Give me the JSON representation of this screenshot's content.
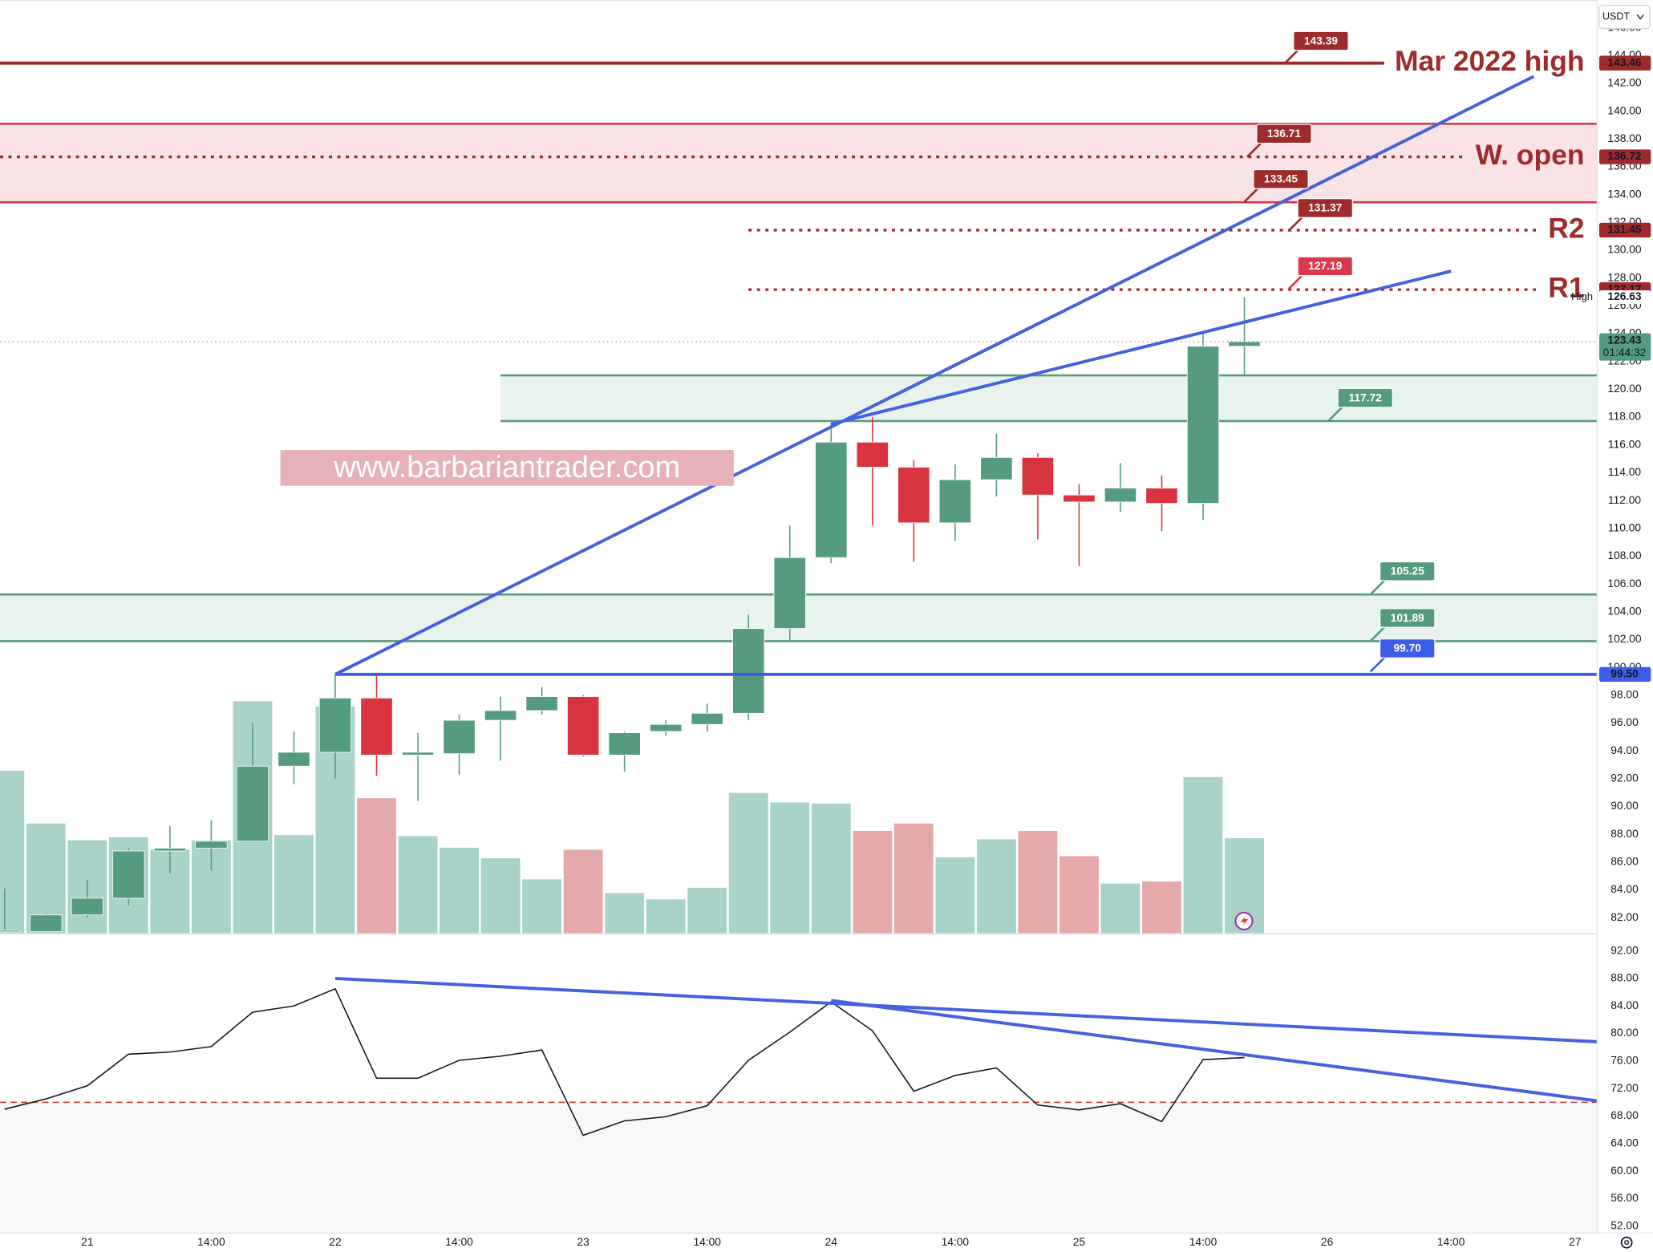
{
  "chart_data": [
    {
      "type": "candlestick",
      "currency": "USDT",
      "categories": [
        null,
        null,
        "21",
        null,
        null,
        "14:00",
        null,
        null,
        "22",
        null,
        null,
        "14:00",
        null,
        null,
        "23",
        null,
        null,
        "14:00",
        null,
        null,
        "24",
        null,
        null,
        "14:00",
        null,
        null,
        "25",
        null,
        null,
        "14:00",
        null,
        null,
        "26",
        null,
        null,
        "14:00",
        null,
        null,
        "27"
      ],
      "open": [
        81.0,
        81.0,
        82.2,
        83.4,
        86.8,
        87.0,
        87.5,
        92.9,
        93.9,
        97.8,
        93.7,
        93.8,
        96.2,
        96.9,
        97.9,
        93.7,
        95.4,
        95.9,
        96.7,
        102.8,
        107.9,
        116.2,
        114.4,
        110.4,
        113.5,
        115.1,
        112.4,
        111.9,
        112.9,
        111.8,
        123.1,
        null,
        null,
        null,
        null,
        null,
        null,
        null,
        null
      ],
      "high": [
        84.1,
        82.3,
        84.7,
        87.0,
        88.6,
        89.0,
        96.0,
        95.4,
        99.5,
        99.5,
        95.3,
        96.6,
        97.9,
        98.6,
        98.0,
        95.4,
        96.2,
        97.4,
        103.8,
        110.2,
        117.6,
        118.0,
        114.9,
        114.6,
        116.8,
        115.4,
        113.2,
        114.7,
        113.8,
        124.1,
        126.63,
        null,
        null,
        null,
        null,
        null,
        null,
        null,
        null
      ],
      "low": [
        81.0,
        81.0,
        82.0,
        82.9,
        85.2,
        85.4,
        87.5,
        91.6,
        92.0,
        92.2,
        90.4,
        92.3,
        93.3,
        96.6,
        93.6,
        92.5,
        95.1,
        95.4,
        96.2,
        101.8,
        107.5,
        110.2,
        107.6,
        109.1,
        112.3,
        109.2,
        107.3,
        111.2,
        109.8,
        110.6,
        121.0,
        null,
        null,
        null,
        null,
        null,
        null,
        null,
        null
      ],
      "close": [
        81.1,
        82.2,
        83.4,
        86.8,
        87.0,
        87.5,
        92.9,
        93.9,
        97.8,
        93.7,
        93.9,
        96.2,
        96.9,
        97.9,
        93.7,
        95.3,
        95.9,
        96.7,
        102.8,
        107.9,
        116.2,
        114.4,
        110.4,
        113.5,
        115.1,
        112.4,
        111.9,
        112.9,
        111.8,
        123.1,
        123.43,
        null,
        null,
        null,
        null,
        null,
        null,
        null,
        null
      ],
      "up_color": "#559b7f",
      "down_color": "#d8343f",
      "ylim": [
        81,
        148
      ],
      "yticks": [
        {
          "value": 82,
          "label": "82.00"
        },
        {
          "value": 84,
          "label": "84.00"
        },
        {
          "value": 86,
          "label": "86.00"
        },
        {
          "value": 88,
          "label": "88.00"
        },
        {
          "value": 90,
          "label": "90.00"
        },
        {
          "value": 92,
          "label": "92.00"
        },
        {
          "value": 94,
          "label": "94.00"
        },
        {
          "value": 96,
          "label": "96.00"
        },
        {
          "value": 98,
          "label": "98.00"
        },
        {
          "value": 100,
          "label": "100.00"
        },
        {
          "value": 102,
          "label": "102.00"
        },
        {
          "value": 104,
          "label": "104.00"
        },
        {
          "value": 106,
          "label": "106.00"
        },
        {
          "value": 108,
          "label": "108.00"
        },
        {
          "value": 110,
          "label": "110.00"
        },
        {
          "value": 112,
          "label": "112.00"
        },
        {
          "value": 114,
          "label": "114.00"
        },
        {
          "value": 116,
          "label": "116.00"
        },
        {
          "value": 118,
          "label": "118.00"
        },
        {
          "value": 120,
          "label": "120.00"
        },
        {
          "value": 122,
          "label": "122.00"
        },
        {
          "value": 124,
          "label": "124.00"
        },
        {
          "value": 126,
          "label": "126.00"
        },
        {
          "value": 128,
          "label": "128.00"
        },
        {
          "value": 130,
          "label": "130.00"
        },
        {
          "value": 132,
          "label": "132.00"
        },
        {
          "value": 134,
          "label": "134.00"
        },
        {
          "value": 136,
          "label": "136.00"
        },
        {
          "value": 138,
          "label": "138.00"
        },
        {
          "value": 140,
          "label": "140.00"
        },
        {
          "value": 142,
          "label": "142.00"
        },
        {
          "value": 144,
          "label": "144.00"
        },
        {
          "value": 146,
          "label": "146.00"
        }
      ],
      "grid": false,
      "volume": {
        "values": [
          155,
          105,
          89,
          92,
          80,
          89,
          221,
          94,
          216,
          129,
          93,
          82,
          72,
          52,
          80,
          39,
          33,
          44,
          134,
          125,
          124,
          98,
          105,
          73,
          90,
          98,
          74,
          48,
          50,
          149,
          91,
          null,
          null,
          null,
          null,
          null,
          null,
          null,
          null
        ],
        "ylim": [
          0,
          886
        ],
        "up_color": "#a9d3c8",
        "down_color": "#e6a9a9"
      },
      "zones": [
        {
          "low": 133.45,
          "high": 139.1,
          "fill": "#f9e3e6",
          "color": "#d9394a"
        },
        {
          "low": 117.72,
          "high": 121.0,
          "fill": "#e8f3ee",
          "color": "#5a9a7e",
          "from": 12
        },
        {
          "low": 101.89,
          "high": 105.25,
          "fill": "#e8f3ee",
          "color": "#5a9a7e"
        }
      ],
      "levels": [
        {
          "name": "Mar 2022 high",
          "value": 143.46,
          "style": "solid",
          "color": "#9e2a2b"
        },
        {
          "name": "W. open",
          "value": 136.72,
          "style": "dotted",
          "color": "#9e2a2b"
        },
        {
          "name": "R2",
          "value": 131.45,
          "style": "dotted",
          "color": "#9e2a2b",
          "from": 18
        },
        {
          "name": "R1",
          "value": 127.17,
          "style": "dotted",
          "color": "#9e2a2b",
          "from": 18
        },
        {
          "value": 99.5,
          "value_label": "99.50",
          "style": "solid",
          "color": "#3d5ce8",
          "from": 8
        }
      ],
      "flags": [
        {
          "value": 143.39,
          "color": "#9e2a2b"
        },
        {
          "value": 136.71,
          "color": "#9e2a2b"
        },
        {
          "value": 133.45,
          "color": "#9e2a2b"
        },
        {
          "value": 131.37,
          "color": "#9e2a2b"
        },
        {
          "value": 127.19,
          "color": "#d9394a"
        },
        {
          "value": 117.72,
          "color": "#559b7f"
        },
        {
          "value": 105.25,
          "color": "#559b7f"
        },
        {
          "value": 101.89,
          "color": "#559b7f"
        },
        {
          "value": 99.7,
          "label": "99.70",
          "color": "#3d5ce8"
        }
      ],
      "trendlines": [
        {
          "points": [
            [
              8,
              99.5
            ],
            [
              37,
              142.5
            ]
          ],
          "color": "#4561e0"
        },
        {
          "points": [
            [
              20,
              117.5
            ],
            [
              35,
              128.5
            ]
          ],
          "color": "#4561e0"
        }
      ],
      "high_marker": {
        "label": "High",
        "value": 126.63
      },
      "last_price": {
        "value": 123.43,
        "countdown": "01:44:32",
        "color": "#559b7f"
      },
      "watermark": "www.barbariantrader.com"
    },
    {
      "type": "line",
      "values": [
        69.0,
        70.5,
        72.4,
        77.0,
        77.3,
        78.1,
        83.1,
        84.0,
        86.5,
        73.5,
        73.5,
        76.1,
        76.7,
        77.6,
        65.2,
        67.3,
        67.9,
        69.5,
        76.1,
        80.2,
        84.6,
        80.4,
        71.6,
        73.9,
        75.0,
        69.6,
        68.9,
        69.8,
        67.2,
        76.2,
        76.5,
        null,
        null,
        null,
        null,
        null,
        null,
        null,
        null
      ],
      "color": "#131722",
      "ylim": [
        51,
        94.5
      ],
      "yticks": [
        {
          "value": 52,
          "label": "52.00"
        },
        {
          "value": 56,
          "label": "56.00"
        },
        {
          "value": 60,
          "label": "60.00"
        },
        {
          "value": 64,
          "label": "64.00"
        },
        {
          "value": 68,
          "label": "68.00"
        },
        {
          "value": 72,
          "label": "72.00"
        },
        {
          "value": 76,
          "label": "76.00"
        },
        {
          "value": 80,
          "label": "80.00"
        },
        {
          "value": 84,
          "label": "84.00"
        },
        {
          "value": 88,
          "label": "88.00"
        },
        {
          "value": 92,
          "label": "92.00"
        }
      ],
      "level": 70,
      "level_color": "#c0392b",
      "trendlines": [
        {
          "points": [
            [
              8,
              88.0
            ],
            [
              38.54,
              78.8
            ]
          ],
          "color": "#4561e0"
        },
        {
          "points": [
            [
              20,
              84.8
            ],
            [
              38.54,
              70.2
            ]
          ],
          "color": "#4561e0"
        }
      ]
    }
  ]
}
